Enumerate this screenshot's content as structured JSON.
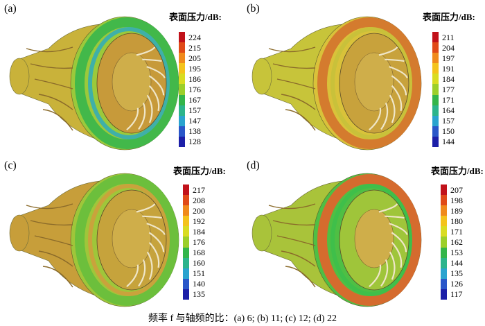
{
  "panels": [
    {
      "label": "(a)",
      "legend_title": "表面压力/dB:",
      "ticks": [
        "224",
        "215",
        "205",
        "195",
        "186",
        "176",
        "167",
        "157",
        "147",
        "138",
        "128"
      ],
      "scheme": {
        "body": "#c9b23a",
        "outer": "#9bc93b",
        "band": "#42b84a",
        "band2": "#3fb0a8",
        "inner": "#c79a3a"
      }
    },
    {
      "label": "(b)",
      "legend_title": "表面压力/dB:",
      "ticks": [
        "211",
        "204",
        "197",
        "191",
        "184",
        "177",
        "171",
        "164",
        "157",
        "150",
        "144"
      ],
      "scheme": {
        "body": "#c7c43a",
        "outer": "#d9c23a",
        "band": "#d47b2e",
        "band2": "#c9c13a",
        "inner": "#c8a23c"
      }
    },
    {
      "label": "(c)",
      "legend_title": "表面压力/dB:",
      "ticks": [
        "217",
        "208",
        "200",
        "192",
        "184",
        "176",
        "168",
        "160",
        "151",
        "140",
        "135"
      ],
      "scheme": {
        "body": "#c79e3a",
        "outer": "#9fc63a",
        "band": "#6cbf3c",
        "band2": "#c9a33c",
        "inner": "#c6a33c"
      }
    },
    {
      "label": "(d)",
      "legend_title": "表面压力/dB:",
      "ticks": [
        "207",
        "198",
        "189",
        "180",
        "171",
        "162",
        "153",
        "144",
        "135",
        "126",
        "117"
      ],
      "scheme": {
        "body": "#a9c33a",
        "outer": "#4fbf44",
        "band": "#d56b2e",
        "band2": "#3fbf4a",
        "inner": "#9fc53a"
      }
    }
  ],
  "legend_colors": [
    "#c1121a",
    "#e04a18",
    "#f08a1c",
    "#f4c31c",
    "#d9dc22",
    "#9ccf2a",
    "#33b54a",
    "#2cb48c",
    "#2aa3cf",
    "#2a57c9",
    "#1c1fa8"
  ],
  "caption": "频率 f 与轴频的比：(a) 6; (b) 11; (c) 12; (d) 22"
}
